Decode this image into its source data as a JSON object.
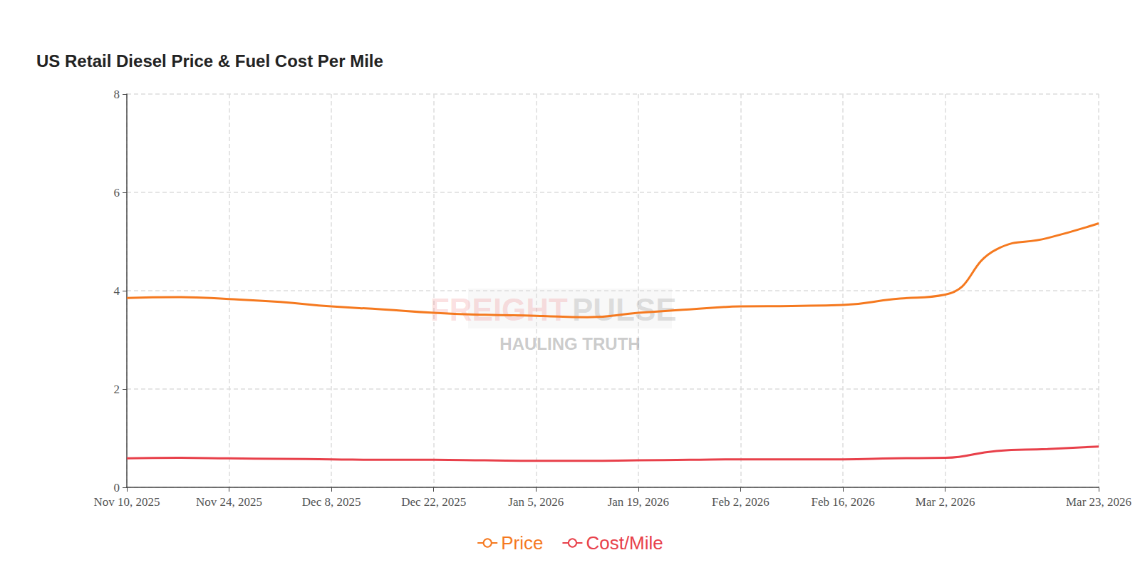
{
  "chart_data": {
    "type": "line",
    "title": "US Retail Diesel Price & Fuel Cost Per Mile",
    "annotations": [
      "FREIGHT",
      "PULSE",
      "HAULING TRUTH"
    ],
    "categories": [
      "Nov 10, 2025",
      null,
      "Nov 24, 2025",
      null,
      "Dec 8, 2025",
      null,
      "Dec 22, 2025",
      null,
      "Jan 5, 2026",
      null,
      "Jan 19, 2026",
      null,
      "Feb 2, 2026",
      null,
      "Feb 16, 2026",
      null,
      "Mar 2, 2026",
      null,
      null,
      "Mar 23, 2026"
    ],
    "series": [
      {
        "name": "Price",
        "color": "#f5791f",
        "marker": "circle",
        "values": [
          3.85,
          3.87,
          3.83,
          3.77,
          3.68,
          3.62,
          3.55,
          3.51,
          3.49,
          3.46,
          3.55,
          3.62,
          3.68,
          3.69,
          3.71,
          3.83,
          3.92,
          4.84,
          5.07,
          5.37
        ]
      },
      {
        "name": "Cost/Mile",
        "color": "#e8404a",
        "marker": "circle",
        "values": [
          0.59,
          0.6,
          0.59,
          0.58,
          0.57,
          0.56,
          0.56,
          0.55,
          0.54,
          0.54,
          0.55,
          0.56,
          0.57,
          0.57,
          0.57,
          0.59,
          0.6,
          0.74,
          0.78,
          0.83
        ]
      }
    ],
    "ylim": [
      0,
      8
    ],
    "yticks": [
      0,
      2,
      4,
      6,
      8
    ],
    "grid": true,
    "legend": "bottom"
  }
}
